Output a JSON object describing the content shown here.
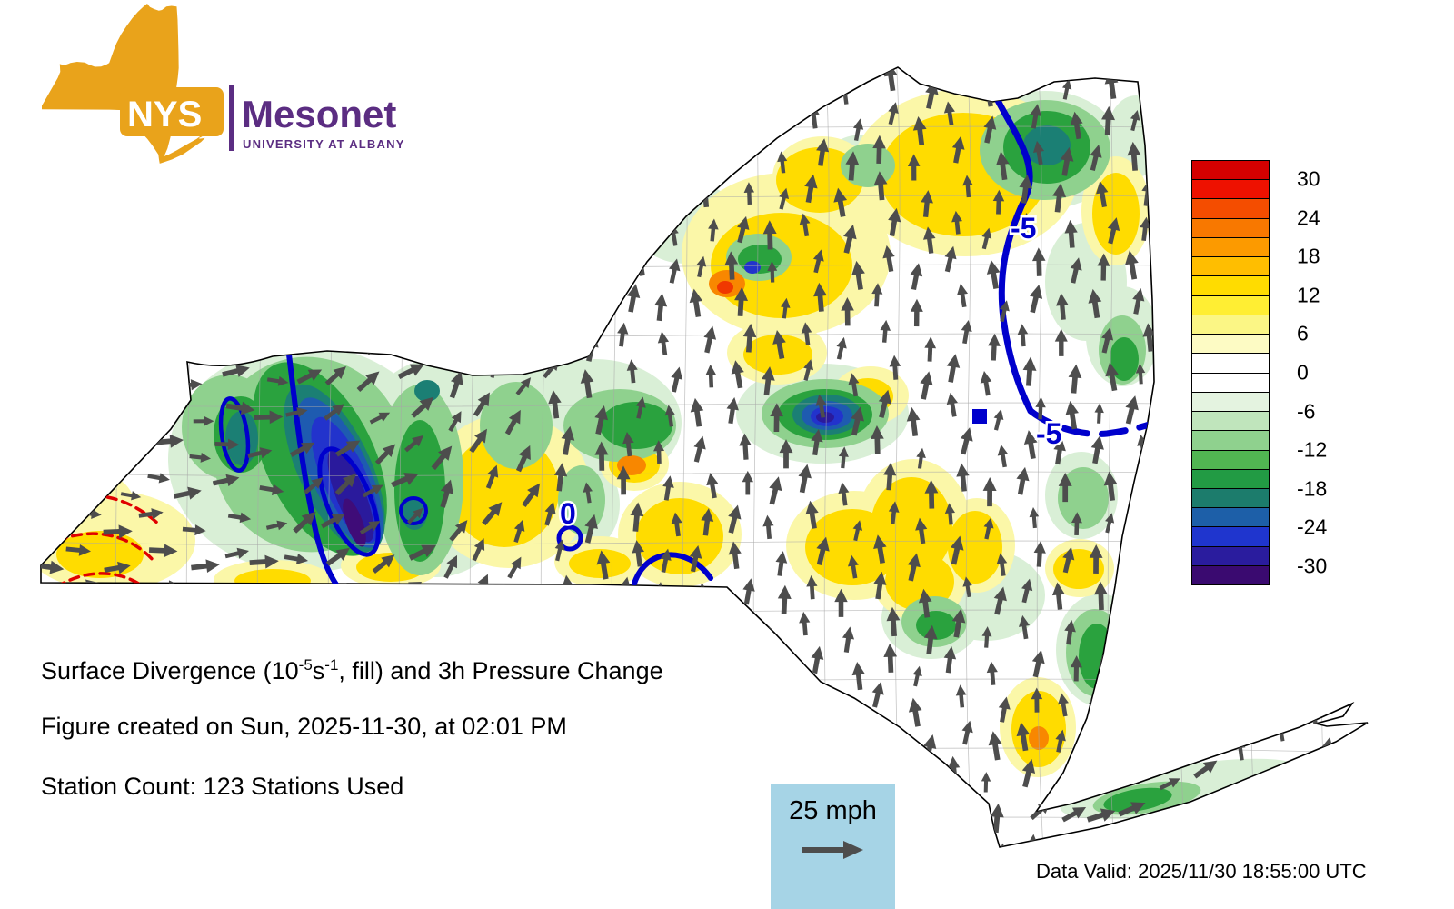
{
  "logo": {
    "nys": "NYS",
    "mesonet": "Mesonet",
    "university": "UNIVERSITY AT ALBANY"
  },
  "title": {
    "part1": "Surface Divergence (10",
    "sup1": "-5",
    "part2": "s",
    "sup2": "-1",
    "part3": ", fill) and 3h Pressure Change"
  },
  "created_line": "Figure created on Sun, 2025-11-30, at 02:01 PM",
  "station_line": "Station Count: 123 Stations Used",
  "wind_legend": {
    "label": "25 mph"
  },
  "data_valid": "Data Valid: 2025/11/30 18:55:00 UTC",
  "colorbar": {
    "tick_labels": [
      "30",
      "24",
      "18",
      "12",
      "6",
      "0",
      "-6",
      "-12",
      "-18",
      "-24",
      "-30"
    ],
    "segment_colors": [
      "#D40000",
      "#EE1100",
      "#F44D00",
      "#F87800",
      "#FC9A00",
      "#FFBE00",
      "#FFDC00",
      "#FFEE33",
      "#FBF685",
      "#FDFBC4",
      "#FFFFFF",
      "#FFFFFF",
      "#E4F3E0",
      "#C0E5BC",
      "#8FD18E",
      "#51B552",
      "#229B44",
      "#1C7C6C",
      "#1D5FA8",
      "#1F35CE",
      "#2A1C9E",
      "#3A0A70"
    ]
  },
  "map": {
    "region": "New York State",
    "contour_labels": [
      "-5",
      "-5",
      "0"
    ]
  },
  "chart_data": {
    "type": "heatmap",
    "title": "Surface Divergence (10^-5 s^-1, fill) and 3h Pressure Change",
    "region": "New York State",
    "fill_variable": "surface divergence",
    "fill_units": "10^-5 s^-1",
    "colorbar_levels": [
      30,
      24,
      18,
      12,
      6,
      0,
      -6,
      -12,
      -18,
      -24,
      -30
    ],
    "contour_variable": "3h pressure change",
    "visible_contour_labels": [
      -5,
      -5,
      0
    ],
    "wind_vector_reference_mph": 25,
    "station_count": 123
  }
}
